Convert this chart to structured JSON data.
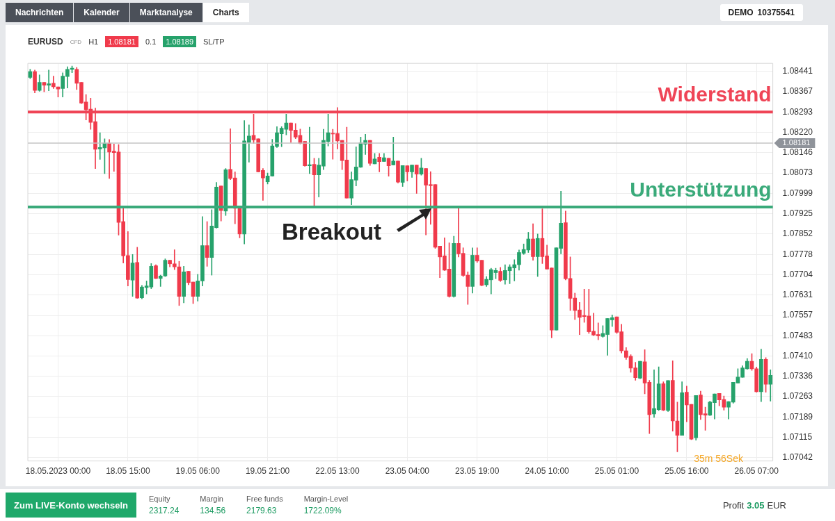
{
  "chart_data": {
    "type": "candlestick",
    "title": "EURUSD",
    "subtitle": "H1",
    "categories": [
      null,
      null,
      null,
      null,
      null,
      null,
      "18.05.2023 00:00",
      null,
      null,
      null,
      null,
      null,
      null,
      null,
      null,
      null,
      null,
      null,
      null,
      null,
      null,
      "18.05 15:00",
      null,
      null,
      null,
      null,
      null,
      null,
      null,
      null,
      null,
      null,
      null,
      null,
      null,
      null,
      "19.05 06:00",
      null,
      null,
      null,
      null,
      null,
      null,
      null,
      null,
      null,
      null,
      null,
      null,
      null,
      null,
      "19.05 21:00",
      null,
      null,
      null,
      null,
      null,
      null,
      null,
      null,
      null,
      null,
      null,
      null,
      null,
      null,
      "22.05 13:00",
      null,
      null,
      null,
      null,
      null,
      null,
      null,
      null,
      null,
      null,
      null,
      null,
      null,
      null,
      "23.05 04:00",
      null,
      null,
      null,
      null,
      null,
      null,
      null,
      null,
      null,
      null,
      null,
      null,
      null,
      null,
      "23.05 19:00",
      null,
      null,
      null,
      null,
      null,
      null,
      null,
      null,
      null,
      null,
      null,
      null,
      null,
      null,
      "24.05 10:00",
      null,
      null,
      null,
      null,
      null,
      null,
      null,
      null,
      null,
      null,
      null,
      null,
      null,
      null,
      "25.05 01:00",
      null,
      null,
      null,
      null,
      null,
      null,
      null,
      null,
      null,
      null,
      null,
      null,
      null,
      null,
      "25.05 16:00",
      null,
      null,
      null,
      null,
      null,
      null,
      null,
      null,
      null,
      null,
      null,
      null,
      null,
      null,
      "26.05 07:00",
      null,
      null,
      null
    ],
    "ohlc": [
      [
        1.08419,
        1.08448,
        1.08415,
        1.0844
      ],
      [
        1.0844,
        1.08446,
        1.08363,
        1.08372
      ],
      [
        1.08372,
        1.08428,
        1.08369,
        1.08401
      ],
      [
        1.08401,
        1.08401,
        1.08367,
        1.08391
      ],
      [
        1.08391,
        1.08446,
        1.08371,
        1.08396
      ],
      [
        1.08398,
        1.08424,
        1.08379,
        1.08385
      ],
      [
        1.08385,
        1.08385,
        1.08348,
        1.08377
      ],
      [
        1.08379,
        1.08436,
        1.08348,
        1.08424
      ],
      [
        1.08422,
        1.08458,
        1.08381,
        1.08448
      ],
      [
        1.08448,
        1.0846,
        1.08436,
        1.08453
      ],
      [
        1.08448,
        1.08455,
        1.08375,
        1.08398
      ],
      [
        1.08401,
        1.08401,
        1.08324,
        1.08326
      ],
      [
        1.0833,
        1.08357,
        1.08265,
        1.08302
      ],
      [
        1.08304,
        1.08344,
        1.08231,
        1.08256
      ],
      [
        1.08259,
        1.08308,
        1.08089,
        1.08159
      ],
      [
        1.0816,
        1.08219,
        1.08122,
        1.08165
      ],
      [
        1.08164,
        1.08197,
        1.08071,
        1.08181
      ],
      [
        1.08181,
        1.08194,
        1.08053,
        1.08149
      ],
      [
        1.08152,
        1.08178,
        1.08079,
        1.08147
      ],
      [
        1.08149,
        1.08176,
        1.07848,
        1.07894
      ],
      [
        1.07897,
        1.07946,
        1.07747,
        1.07773
      ],
      [
        1.07774,
        1.07861,
        1.07664,
        1.07687
      ],
      [
        1.07685,
        1.07778,
        1.07626,
        1.07747
      ],
      [
        1.07749,
        1.07804,
        1.07619,
        1.0762
      ],
      [
        1.07621,
        1.07666,
        1.07617,
        1.0766
      ],
      [
        1.07658,
        1.07682,
        1.07635,
        1.07664
      ],
      [
        1.0766,
        1.07745,
        1.07654,
        1.07735
      ],
      [
        1.07737,
        1.07741,
        1.0769,
        1.07691
      ],
      [
        1.07691,
        1.07703,
        1.07662,
        1.077
      ],
      [
        1.077,
        1.07762,
        1.07698,
        1.07757
      ],
      [
        1.07757,
        1.07757,
        1.07733,
        1.07744
      ],
      [
        1.07744,
        1.07795,
        1.07723,
        1.07733
      ],
      [
        1.07733,
        1.07753,
        1.07593,
        1.07626
      ],
      [
        1.07626,
        1.07735,
        1.07603,
        1.07715
      ],
      [
        1.07717,
        1.07717,
        1.07668,
        1.07676
      ],
      [
        1.07678,
        1.07678,
        1.076,
        1.07626
      ],
      [
        1.07626,
        1.07706,
        1.07609,
        1.07682
      ],
      [
        1.07682,
        1.07915,
        1.07664,
        1.0781
      ],
      [
        1.0781,
        1.07897,
        1.07735,
        1.07767
      ],
      [
        1.07767,
        1.0794,
        1.07703,
        1.07881
      ],
      [
        1.07875,
        1.08039,
        1.07873,
        1.08022
      ],
      [
        1.08026,
        1.08026,
        1.07899,
        1.07937
      ],
      [
        1.07935,
        1.08089,
        1.07919,
        1.08085
      ],
      [
        1.08086,
        1.08233,
        1.08049,
        1.08053
      ],
      [
        1.08055,
        1.08077,
        1.07889,
        1.07945
      ],
      [
        1.0795,
        1.0795,
        1.07838,
        1.07852
      ],
      [
        1.07852,
        1.08263,
        1.07816,
        1.08189
      ],
      [
        1.08183,
        1.08247,
        1.08112,
        1.08207
      ],
      [
        1.08209,
        1.08286,
        1.0818,
        1.08193
      ],
      [
        1.08197,
        1.08197,
        1.08077,
        1.08077
      ],
      [
        1.08082,
        1.08089,
        1.07974,
        1.08055
      ],
      [
        1.08041,
        1.08073,
        1.08033,
        1.08062
      ],
      [
        1.08062,
        1.08195,
        1.08061,
        1.08171
      ],
      [
        1.08169,
        1.08241,
        1.08165,
        1.08219
      ],
      [
        1.08215,
        1.08241,
        1.08168,
        1.08235
      ],
      [
        1.08231,
        1.08286,
        1.08211,
        1.08254
      ],
      [
        1.08254,
        1.08254,
        1.08183,
        1.08227
      ],
      [
        1.08228,
        1.08252,
        1.08197,
        1.08203
      ],
      [
        1.08209,
        1.08232,
        1.08178,
        1.0818
      ],
      [
        1.08187,
        1.08187,
        1.08097,
        1.08099
      ],
      [
        1.08099,
        1.08239,
        1.08071,
        1.08103
      ],
      [
        1.08104,
        1.08126,
        1.07954,
        1.08066
      ],
      [
        1.08066,
        1.08126,
        1.07986,
        1.08102
      ],
      [
        1.08098,
        1.08231,
        1.08085,
        1.08191
      ],
      [
        1.08187,
        1.08286,
        1.08171,
        1.08219
      ],
      [
        1.08217,
        1.08231,
        1.08123,
        1.08214
      ],
      [
        1.08216,
        1.0831,
        1.0816,
        1.08189
      ],
      [
        1.08191,
        1.08191,
        1.08085,
        1.08118
      ],
      [
        1.0812,
        1.08239,
        1.07982,
        1.07982
      ],
      [
        1.07982,
        1.08077,
        1.07958,
        1.08049
      ],
      [
        1.08047,
        1.08168,
        1.08026,
        1.08095
      ],
      [
        1.08094,
        1.08203,
        1.08093,
        1.08182
      ],
      [
        1.08177,
        1.08213,
        1.0814,
        1.08191
      ],
      [
        1.08191,
        1.08191,
        1.081,
        1.08108
      ],
      [
        1.08106,
        1.08144,
        1.08106,
        1.08124
      ],
      [
        1.0813,
        1.08144,
        1.08077,
        1.08114
      ],
      [
        1.08115,
        1.08144,
        1.08115,
        1.08128
      ],
      [
        1.08126,
        1.08126,
        1.08061,
        1.08099
      ],
      [
        1.08102,
        1.08203,
        1.08102,
        1.08116
      ],
      [
        1.08116,
        1.08116,
        1.08037,
        1.0804
      ],
      [
        1.08039,
        1.081,
        1.08024,
        1.081
      ],
      [
        1.08099,
        1.08099,
        1.08044,
        1.08077
      ],
      [
        1.08077,
        1.08102,
        1.08057,
        1.08102
      ],
      [
        1.08102,
        1.08102,
        1.07999,
        1.08069
      ],
      [
        1.08069,
        1.08126,
        1.08065,
        1.08091
      ],
      [
        1.08089,
        1.08089,
        1.07849,
        1.08029
      ],
      [
        1.08031,
        1.08078,
        1.07887,
        1.08027
      ],
      [
        1.08031,
        1.08031,
        1.078,
        1.07804
      ],
      [
        1.07808,
        1.07808,
        1.07694,
        1.07769
      ],
      [
        1.07773,
        1.07838,
        1.0772,
        1.07721
      ],
      [
        1.07725,
        1.0782,
        1.07623,
        1.07626
      ],
      [
        1.07626,
        1.07844,
        1.07623,
        1.07818
      ],
      [
        1.07818,
        1.07946,
        1.07769,
        1.0778
      ],
      [
        1.07782,
        1.07802,
        1.07698,
        1.07702
      ],
      [
        1.07703,
        1.07715,
        1.07597,
        1.07662
      ],
      [
        1.07662,
        1.07802,
        1.07638,
        1.07775
      ],
      [
        1.07775,
        1.07802,
        1.07749,
        1.07754
      ],
      [
        1.07757,
        1.07757,
        1.07664,
        1.07666
      ],
      [
        1.07668,
        1.07698,
        1.07662,
        1.07688
      ],
      [
        1.07686,
        1.07728,
        1.07635,
        1.07723
      ],
      [
        1.07712,
        1.07728,
        1.0769,
        1.0772
      ],
      [
        1.07717,
        1.07731,
        1.0768,
        1.07684
      ],
      [
        1.07686,
        1.07741,
        1.0767,
        1.0772
      ],
      [
        1.07719,
        1.07741,
        1.07672,
        1.07733
      ],
      [
        1.07729,
        1.07759,
        1.07682,
        1.07741
      ],
      [
        1.07741,
        1.07794,
        1.07721,
        1.07785
      ],
      [
        1.07782,
        1.07816,
        1.07778,
        1.07796
      ],
      [
        1.07794,
        1.07858,
        1.07785,
        1.07834
      ],
      [
        1.07834,
        1.07889,
        1.07757,
        1.0777
      ],
      [
        1.0777,
        1.07852,
        1.07698,
        1.07836
      ],
      [
        1.07836,
        1.07943,
        1.07745,
        1.0777
      ],
      [
        1.07773,
        1.07812,
        1.07725,
        1.07725
      ],
      [
        1.07729,
        1.07729,
        1.07476,
        1.07504
      ],
      [
        1.07504,
        1.07802,
        1.07504,
        1.07802
      ],
      [
        1.078,
        1.08007,
        1.0778,
        1.07891
      ],
      [
        1.07893,
        1.07935,
        1.07686,
        1.0769
      ],
      [
        1.07691,
        1.07769,
        1.07575,
        1.07619
      ],
      [
        1.0762,
        1.07638,
        1.07542,
        1.07575
      ],
      [
        1.07577,
        1.07604,
        1.07488,
        1.0755
      ],
      [
        1.07557,
        1.07652,
        1.07532,
        1.07553
      ],
      [
        1.07555,
        1.07652,
        1.07492,
        1.07498
      ],
      [
        1.075,
        1.07565,
        1.07484,
        1.07486
      ],
      [
        1.07488,
        1.0753,
        1.07469,
        1.07483
      ],
      [
        1.07481,
        1.0752,
        1.07478,
        1.07492
      ],
      [
        1.07488,
        1.07546,
        1.07413,
        1.07546
      ],
      [
        1.07541,
        1.07559,
        1.07517,
        1.07549
      ],
      [
        1.07552,
        1.07552,
        1.07492,
        1.07496
      ],
      [
        1.07498,
        1.07525,
        1.07421,
        1.07429
      ],
      [
        1.07429,
        1.07441,
        1.07398,
        1.07405
      ],
      [
        1.07409,
        1.07415,
        1.07351,
        1.07366
      ],
      [
        1.07367,
        1.07387,
        1.07322,
        1.07332
      ],
      [
        1.0733,
        1.07391,
        1.07328,
        1.07391
      ],
      [
        1.07389,
        1.07433,
        1.07273,
        1.07312
      ],
      [
        1.07315,
        1.07322,
        1.07129,
        1.07198
      ],
      [
        1.072,
        1.0736,
        1.07188,
        1.0722
      ],
      [
        1.07216,
        1.07371,
        1.07213,
        1.07309
      ],
      [
        1.0731,
        1.07317,
        1.07212,
        1.07214
      ],
      [
        1.07213,
        1.07321,
        1.07209,
        1.07321
      ],
      [
        1.07322,
        1.07393,
        1.07138,
        1.07175
      ],
      [
        1.07175,
        1.07243,
        1.07063,
        1.07123
      ],
      [
        1.07123,
        1.07317,
        1.07123,
        1.07277
      ],
      [
        1.07279,
        1.07301,
        1.07172,
        1.07233
      ],
      [
        1.07235,
        1.07235,
        1.07107,
        1.07109
      ],
      [
        1.07114,
        1.07267,
        1.07105,
        1.07267
      ],
      [
        1.07269,
        1.07283,
        1.0718,
        1.07198
      ],
      [
        1.07201,
        1.07225,
        1.07141,
        1.07196
      ],
      [
        1.07196,
        1.07247,
        1.07194,
        1.07243
      ],
      [
        1.07241,
        1.07273,
        1.07182,
        1.07273
      ],
      [
        1.07275,
        1.07275,
        1.0723,
        1.07251
      ],
      [
        1.07253,
        1.07265,
        1.07214,
        1.07225
      ],
      [
        1.07225,
        1.07245,
        1.07182,
        1.07245
      ],
      [
        1.07243,
        1.07315,
        1.07239,
        1.07315
      ],
      [
        1.07312,
        1.07364,
        1.07312,
        1.07334
      ],
      [
        1.07333,
        1.07375,
        1.07333,
        1.07367
      ],
      [
        1.07364,
        1.07401,
        1.07362,
        1.07391
      ],
      [
        1.07391,
        1.07419,
        1.07358,
        1.07364
      ],
      [
        1.07364,
        1.0737,
        1.07279,
        1.07281
      ],
      [
        1.07281,
        1.07435,
        1.07245,
        1.07398
      ],
      [
        1.07398,
        1.07404,
        1.07279,
        1.07308
      ],
      [
        1.07308,
        1.0736,
        1.07247,
        1.0734
      ]
    ],
    "colors": [
      "#26a26b",
      "#f03a4b",
      "#26a26b",
      "#f03a4b",
      "#26a26b",
      "#f03a4b",
      "#f03a4b",
      "#26a26b",
      "#26a26b",
      "#26a26b",
      "#f03a4b",
      "#f03a4b",
      "#f03a4b",
      "#f03a4b",
      "#f03a4b",
      "#26a26b",
      "#26a26b",
      "#f03a4b",
      "#f03a4b",
      "#f03a4b",
      "#f03a4b",
      "#f03a4b",
      "#26a26b",
      "#f03a4b",
      "#26a26b",
      "#26a26b",
      "#26a26b",
      "#f03a4b",
      "#26a26b",
      "#26a26b",
      "#f03a4b",
      "#f03a4b",
      "#f03a4b",
      "#26a26b",
      "#f03a4b",
      "#f03a4b",
      "#26a26b",
      "#26a26b",
      "#f03a4b",
      "#26a26b",
      "#26a26b",
      "#f03a4b",
      "#26a26b",
      "#f03a4b",
      "#f03a4b",
      "#f03a4b",
      "#26a26b",
      "#26a26b",
      "#f03a4b",
      "#f03a4b",
      "#f03a4b",
      "#26a26b",
      "#26a26b",
      "#26a26b",
      "#26a26b",
      "#26a26b",
      "#f03a4b",
      "#f03a4b",
      "#f03a4b",
      "#f03a4b",
      "#26a26b",
      "#f03a4b",
      "#26a26b",
      "#26a26b",
      "#26a26b",
      "#f03a4b",
      "#f03a4b",
      "#f03a4b",
      "#f03a4b",
      "#26a26b",
      "#26a26b",
      "#26a26b",
      "#26a26b",
      "#f03a4b",
      "#26a26b",
      "#f03a4b",
      "#26a26b",
      "#f03a4b",
      "#26a26b",
      "#f03a4b",
      "#26a26b",
      "#f03a4b",
      "#26a26b",
      "#f03a4b",
      "#26a26b",
      "#f03a4b",
      "#f03a4b",
      "#f03a4b",
      "#f03a4b",
      "#f03a4b",
      "#f03a4b",
      "#26a26b",
      "#f03a4b",
      "#f03a4b",
      "#f03a4b",
      "#26a26b",
      "#f03a4b",
      "#f03a4b",
      "#26a26b",
      "#26a26b",
      "#26a26b",
      "#f03a4b",
      "#26a26b",
      "#26a26b",
      "#26a26b",
      "#26a26b",
      "#26a26b",
      "#26a26b",
      "#f03a4b",
      "#26a26b",
      "#f03a4b",
      "#f03a4b",
      "#f03a4b",
      "#26a26b",
      "#26a26b",
      "#f03a4b",
      "#f03a4b",
      "#f03a4b",
      "#f03a4b",
      "#f03a4b",
      "#f03a4b",
      "#f03a4b",
      "#f03a4b",
      "#26a26b",
      "#26a26b",
      "#26a26b",
      "#f03a4b",
      "#f03a4b",
      "#f03a4b",
      "#f03a4b",
      "#f03a4b",
      "#26a26b",
      "#f03a4b",
      "#f03a4b",
      "#26a26b",
      "#26a26b",
      "#f03a4b",
      "#26a26b",
      "#f03a4b",
      "#f03a4b",
      "#26a26b",
      "#f03a4b",
      "#f03a4b",
      "#26a26b",
      "#f03a4b",
      "#f03a4b",
      "#26a26b",
      "#26a26b",
      "#f03a4b",
      "#f03a4b",
      "#26a26b",
      "#26a26b",
      "#26a26b",
      "#26a26b",
      "#26a26b",
      "#f03a4b",
      "#f03a4b",
      "#26a26b",
      "#f03a4b",
      "#26a26b"
    ],
    "ylim": [
      1.0703,
      1.0847
    ],
    "yticks": [
      1.08441,
      1.08367,
      1.08293,
      {
        "value": 1.0822,
        "label": "1.08220"
      },
      1.08146,
      1.08073,
      1.07999,
      1.07925,
      1.07852,
      1.07778,
      1.07704,
      1.07631,
      1.07557,
      1.07483,
      {
        "value": 1.0741,
        "label": "1.07410"
      },
      1.07336,
      1.07263,
      1.07189,
      1.07115,
      1.07042
    ],
    "grid": true,
    "ref_lines": [
      {
        "axis": "y",
        "value": 1.08181,
        "label": "1.08181",
        "color": "#c4c4c4",
        "line_style": "solid"
      },
      {
        "axis": "y",
        "value": 1.08294,
        "label": "Widerstand",
        "color": "#ef4456"
      },
      {
        "axis": "y",
        "value": 1.0795,
        "label": "Unterstützung",
        "color": "#3aaa7a"
      }
    ],
    "annotations": [
      "Breakout",
      "Nachrichten",
      "Kalender",
      "Marktanalyse",
      "Charts",
      "DEMO",
      "10375541",
      "CFD",
      "1.08181",
      "0.1",
      "1.08189",
      "SL/TP",
      "Zum LIVE-Konto wechseln",
      "Equity",
      "2317.24",
      "Margin",
      "134.56",
      "Free funds",
      "2179.63",
      "Margin-Level",
      "1722.09%",
      "Profit",
      "3.05",
      "EUR",
      "35m 56Sek"
    ]
  }
}
